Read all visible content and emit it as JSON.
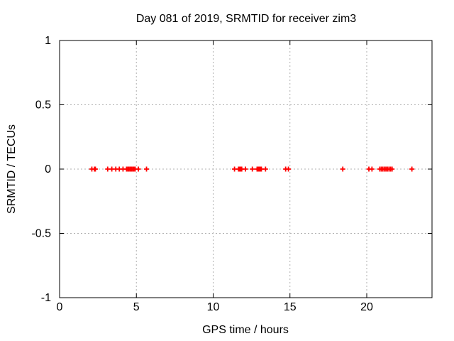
{
  "chart_data": {
    "type": "scatter",
    "title": "Day 081 of 2019, SRMTID for receiver zim3",
    "xlabel": "GPS time / hours",
    "ylabel": "SRMTID / TECUs",
    "xlim": [
      0,
      24.25
    ],
    "ylim": [
      -1,
      1
    ],
    "xticks": [
      0,
      5,
      10,
      15,
      20
    ],
    "yticks": [
      -1,
      -0.5,
      0,
      0.5,
      1
    ],
    "grid": true,
    "legend_position": "none",
    "marker": "plus",
    "marker_color": "#ff0000",
    "grid_color": "#b0b0b0",
    "border_color": "#000000",
    "series": [
      {
        "name": "SRMTID",
        "points": [
          [
            2.1,
            0
          ],
          [
            2.27,
            0
          ],
          [
            2.33,
            0
          ],
          [
            3.13,
            0
          ],
          [
            3.4,
            0
          ],
          [
            3.66,
            0
          ],
          [
            3.89,
            0
          ],
          [
            4.13,
            0
          ],
          [
            4.36,
            0
          ],
          [
            4.44,
            0
          ],
          [
            4.52,
            0
          ],
          [
            4.6,
            0
          ],
          [
            4.68,
            0
          ],
          [
            4.76,
            0
          ],
          [
            4.84,
            0
          ],
          [
            4.92,
            0
          ],
          [
            5.13,
            0
          ],
          [
            5.66,
            0
          ],
          [
            11.39,
            0
          ],
          [
            11.65,
            0
          ],
          [
            11.72,
            0
          ],
          [
            11.79,
            0
          ],
          [
            11.86,
            0
          ],
          [
            12.1,
            0
          ],
          [
            12.55,
            0
          ],
          [
            12.86,
            0
          ],
          [
            12.93,
            0
          ],
          [
            13.0,
            0
          ],
          [
            13.07,
            0
          ],
          [
            13.14,
            0
          ],
          [
            13.41,
            0
          ],
          [
            14.72,
            0
          ],
          [
            14.9,
            0
          ],
          [
            18.44,
            0
          ],
          [
            20.14,
            0
          ],
          [
            20.34,
            0
          ],
          [
            20.85,
            0
          ],
          [
            20.95,
            0
          ],
          [
            21.05,
            0
          ],
          [
            21.15,
            0
          ],
          [
            21.25,
            0
          ],
          [
            21.35,
            0
          ],
          [
            21.45,
            0
          ],
          [
            21.55,
            0
          ],
          [
            21.65,
            0
          ],
          [
            22.94,
            0
          ]
        ]
      }
    ]
  }
}
